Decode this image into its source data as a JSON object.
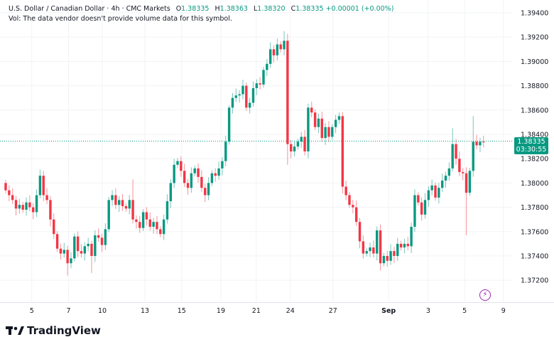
{
  "header": {
    "symbol": "U.S. Dollar / Canadian Dollar · 4h · CMC Markets",
    "o_label": "O",
    "o": "1.38335",
    "h_label": "H",
    "h": "1.38363",
    "l_label": "L",
    "l": "1.38320",
    "c_label": "C",
    "c": "1.38335",
    "change": "+0.00001 (+0.00%)",
    "vol_note": "Vol: The data vendor doesn't provide volume data for this symbol."
  },
  "price_tag": {
    "price": "1.38335",
    "countdown": "03:30:55"
  },
  "footer": {
    "brand": "TradingView"
  },
  "colors": {
    "up": "#089981",
    "down": "#F23645",
    "grid": "#f2f3f6"
  },
  "chart_data": {
    "type": "candlestick",
    "title": "U.S. Dollar / Canadian Dollar · 4h · CMC Markets",
    "ylim": [
      1.371,
      1.395
    ],
    "y_ticks": [
      "1.39400",
      "1.39200",
      "1.39000",
      "1.38800",
      "1.38600",
      "1.38400",
      "1.38200",
      "1.38000",
      "1.37800",
      "1.37600",
      "1.37400",
      "1.37200"
    ],
    "x_ticks": [
      {
        "label": "5",
        "index": 7.6
      },
      {
        "label": "7",
        "index": 18.3
      },
      {
        "label": "10",
        "index": 28.1
      },
      {
        "label": "13",
        "index": 40.5
      },
      {
        "label": "15",
        "index": 51.2
      },
      {
        "label": "19",
        "index": 62.6
      },
      {
        "label": "21",
        "index": 72.9
      },
      {
        "label": "24",
        "index": 82.8
      },
      {
        "label": "27",
        "index": 95.2
      },
      {
        "label": "Sep",
        "index": 111.4
      },
      {
        "label": "3",
        "index": 122.9
      },
      {
        "label": "5",
        "index": 133.5
      },
      {
        "label": "9",
        "index": 144.8
      }
    ],
    "first_open": 1.38,
    "close": [
      1.3794,
      1.379,
      1.3786,
      1.3779,
      1.3782,
      1.3778,
      1.3784,
      1.378,
      1.3776,
      1.379,
      1.3806,
      1.379,
      1.3786,
      1.377,
      1.3758,
      1.3746,
      1.3742,
      1.3745,
      1.3734,
      1.3738,
      1.3756,
      1.3744,
      1.3742,
      1.3748,
      1.375,
      1.374,
      1.3757,
      1.3755,
      1.3749,
      1.3762,
      1.3786,
      1.379,
      1.3782,
      1.3786,
      1.3781,
      1.3779,
      1.3786,
      1.377,
      1.3768,
      1.3763,
      1.3776,
      1.377,
      1.3764,
      1.3768,
      1.3762,
      1.3758,
      1.377,
      1.3785,
      1.38,
      1.3815,
      1.3818,
      1.381,
      1.38,
      1.3796,
      1.3808,
      1.3812,
      1.3805,
      1.3796,
      1.379,
      1.38,
      1.3808,
      1.3806,
      1.3812,
      1.3818,
      1.3834,
      1.3862,
      1.387,
      1.3872,
      1.3873,
      1.388,
      1.3862,
      1.3866,
      1.3878,
      1.3882,
      1.3881,
      1.3893,
      1.3898,
      1.391,
      1.3905,
      1.3914,
      1.391,
      1.3917,
      1.3832,
      1.3826,
      1.383,
      1.3834,
      1.3838,
      1.3826,
      1.3862,
      1.3858,
      1.3846,
      1.3853,
      1.3837,
      1.3846,
      1.3838,
      1.3846,
      1.3852,
      1.3855,
      1.3797,
      1.379,
      1.3782,
      1.378,
      1.3768,
      1.3752,
      1.3742,
      1.3744,
      1.3747,
      1.3742,
      1.3761,
      1.3734,
      1.374,
      1.3736,
      1.3744,
      1.374,
      1.375,
      1.3747,
      1.375,
      1.3748,
      1.3764,
      1.379,
      1.3784,
      1.3774,
      1.3786,
      1.3794,
      1.3798,
      1.3788,
      1.3796,
      1.3802,
      1.3806,
      1.3812,
      1.3832,
      1.382,
      1.3809,
      1.3808,
      1.3792,
      1.381,
      1.3834,
      1.3831,
      1.3834,
      1.38335
    ],
    "wick_extremes": [
      {
        "index": 10,
        "high": 1.3811
      },
      {
        "index": 18,
        "low": 1.3724
      },
      {
        "index": 25,
        "low": 1.3726
      },
      {
        "index": 37,
        "high": 1.3803
      },
      {
        "index": 65,
        "high": 1.3864
      },
      {
        "index": 81,
        "high": 1.3925
      },
      {
        "index": 82,
        "low": 1.3815
      },
      {
        "index": 97,
        "high": 1.3858
      },
      {
        "index": 109,
        "low": 1.3728
      },
      {
        "index": 130,
        "high": 1.3845
      },
      {
        "index": 134,
        "low": 1.3757
      },
      {
        "index": 136,
        "high": 1.3855
      }
    ],
    "last_price": 1.38335
  }
}
